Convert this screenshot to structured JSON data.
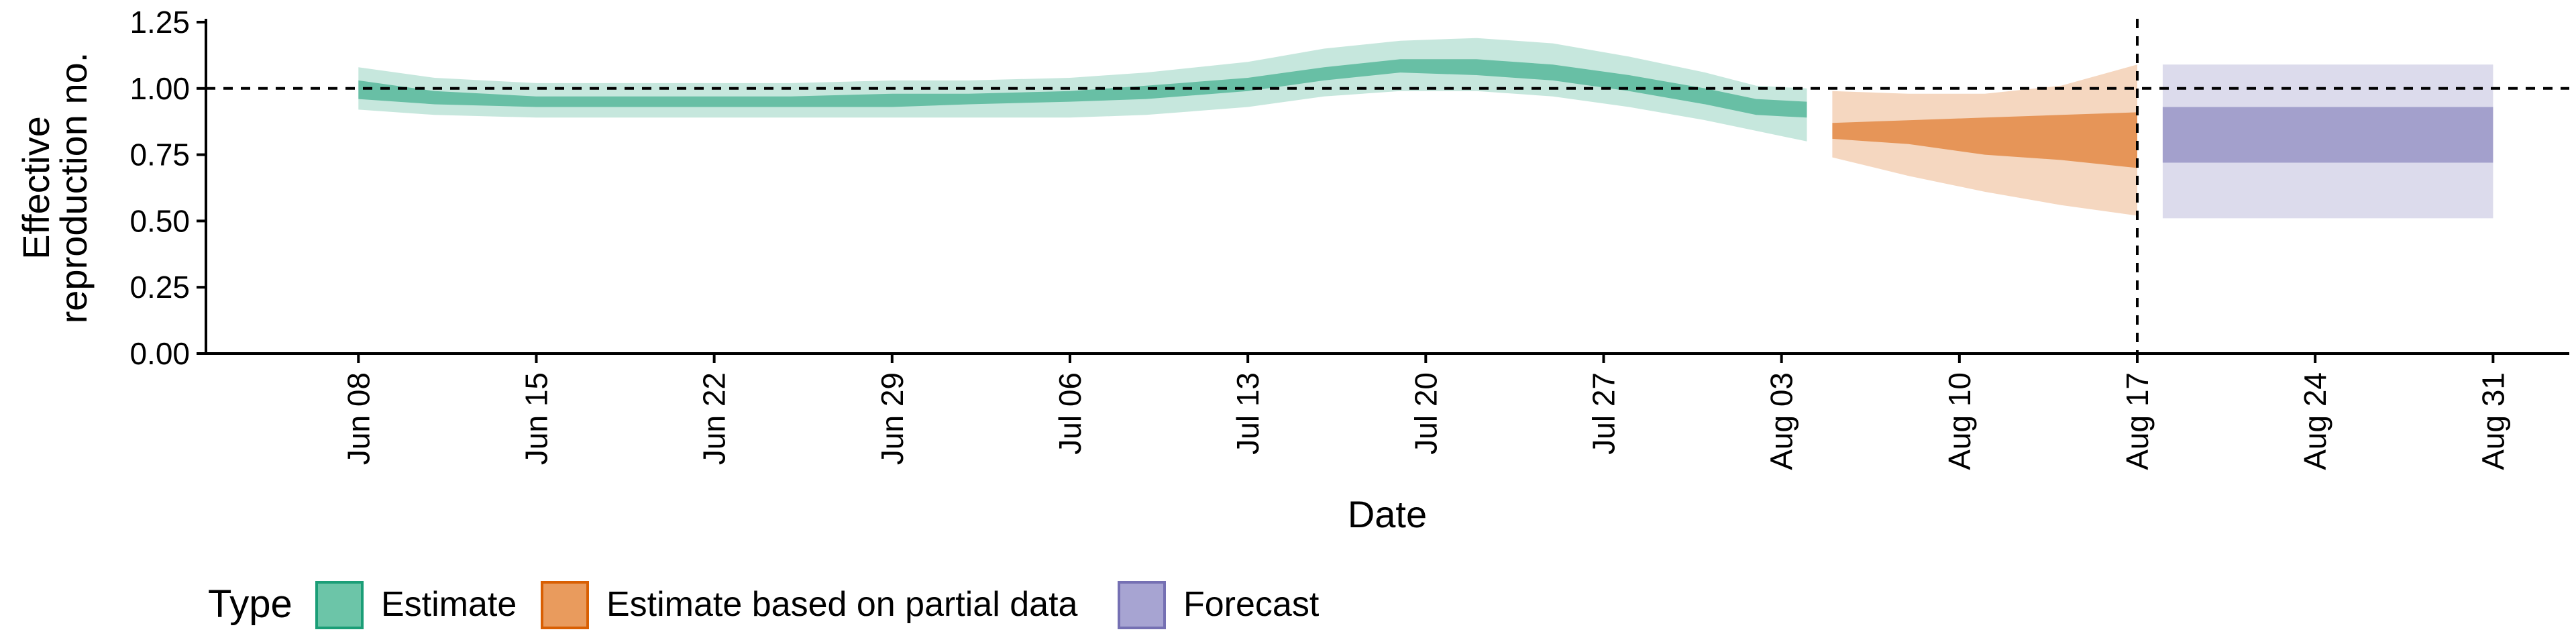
{
  "chart_data": {
    "type": "area",
    "xlabel": "Date",
    "ylabel": [
      "Effective",
      "reproduction no."
    ],
    "ylim": [
      0,
      1.25
    ],
    "xlim": [
      "2020-06-02",
      "2020-09-03"
    ],
    "y_ticks": [
      0,
      0.25,
      0.5,
      0.75,
      1.0,
      1.25
    ],
    "y_tick_labels": [
      "0.00",
      "0.25",
      "0.50",
      "0.75",
      "1.00",
      "1.25"
    ],
    "x_ticks": [
      "2020-06-08",
      "2020-06-15",
      "2020-06-22",
      "2020-06-29",
      "2020-07-06",
      "2020-07-13",
      "2020-07-20",
      "2020-07-27",
      "2020-08-03",
      "2020-08-10",
      "2020-08-17",
      "2020-08-24",
      "2020-08-31"
    ],
    "x_tick_labels": [
      "Jun 08",
      "Jun 15",
      "Jun 22",
      "Jun 29",
      "Jul 06",
      "Jul 13",
      "Jul 20",
      "Jul 27",
      "Aug 03",
      "Aug 10",
      "Aug 17",
      "Aug 24",
      "Aug 31"
    ],
    "reference_lines": {
      "horizontal_y": 1.0,
      "vertical_x": "2020-08-17"
    },
    "grid": false,
    "legend": {
      "title": "Type",
      "position": "bottom",
      "entries": [
        "Estimate",
        "Estimate based on partial data",
        "Forecast"
      ]
    },
    "colors": {
      "Estimate": "#1b9e77",
      "Estimate based on partial data": "#d95f02",
      "Forecast": "#7570b3",
      "legend_fills": {
        "Estimate": "#6cc5a8",
        "Estimate based on partial data": "#e99b5d",
        "Forecast": "#a7a4d2"
      }
    },
    "series": [
      {
        "name": "Estimate",
        "x": [
          "2020-06-08",
          "2020-06-11",
          "2020-06-15",
          "2020-06-18",
          "2020-06-22",
          "2020-06-25",
          "2020-06-29",
          "2020-07-02",
          "2020-07-06",
          "2020-07-09",
          "2020-07-13",
          "2020-07-16",
          "2020-07-19",
          "2020-07-22",
          "2020-07-25",
          "2020-07-28",
          "2020-07-31",
          "2020-08-02",
          "2020-08-04"
        ],
        "outer_lower": [
          0.92,
          0.9,
          0.89,
          0.89,
          0.89,
          0.89,
          0.89,
          0.89,
          0.89,
          0.9,
          0.93,
          0.97,
          0.99,
          0.99,
          0.97,
          0.93,
          0.88,
          0.84,
          0.8
        ],
        "outer_upper": [
          1.08,
          1.04,
          1.02,
          1.02,
          1.02,
          1.02,
          1.03,
          1.03,
          1.04,
          1.06,
          1.1,
          1.15,
          1.18,
          1.19,
          1.17,
          1.12,
          1.06,
          1.01,
          1.0
        ],
        "inner_lower": [
          0.96,
          0.94,
          0.93,
          0.93,
          0.93,
          0.93,
          0.93,
          0.94,
          0.95,
          0.96,
          0.99,
          1.03,
          1.06,
          1.05,
          1.03,
          0.99,
          0.94,
          0.9,
          0.89
        ],
        "inner_upper": [
          1.03,
          0.99,
          0.97,
          0.97,
          0.97,
          0.97,
          0.98,
          0.98,
          0.99,
          1.01,
          1.04,
          1.08,
          1.11,
          1.11,
          1.09,
          1.05,
          1.0,
          0.96,
          0.95
        ]
      },
      {
        "name": "Estimate based on partial data",
        "x": [
          "2020-08-05",
          "2020-08-08",
          "2020-08-11",
          "2020-08-14",
          "2020-08-17"
        ],
        "outer_lower": [
          0.74,
          0.67,
          0.61,
          0.56,
          0.52
        ],
        "outer_upper": [
          0.99,
          0.98,
          0.98,
          1.01,
          1.09
        ],
        "inner_lower": [
          0.81,
          0.79,
          0.75,
          0.73,
          0.7
        ],
        "inner_upper": [
          0.87,
          0.88,
          0.89,
          0.9,
          0.91
        ]
      },
      {
        "name": "Forecast",
        "x": [
          "2020-08-18",
          "2020-08-31"
        ],
        "outer_lower": [
          0.51,
          0.51
        ],
        "outer_upper": [
          1.09,
          1.09
        ],
        "inner_lower": [
          0.72,
          0.72
        ],
        "inner_upper": [
          0.93,
          0.93
        ]
      }
    ]
  }
}
